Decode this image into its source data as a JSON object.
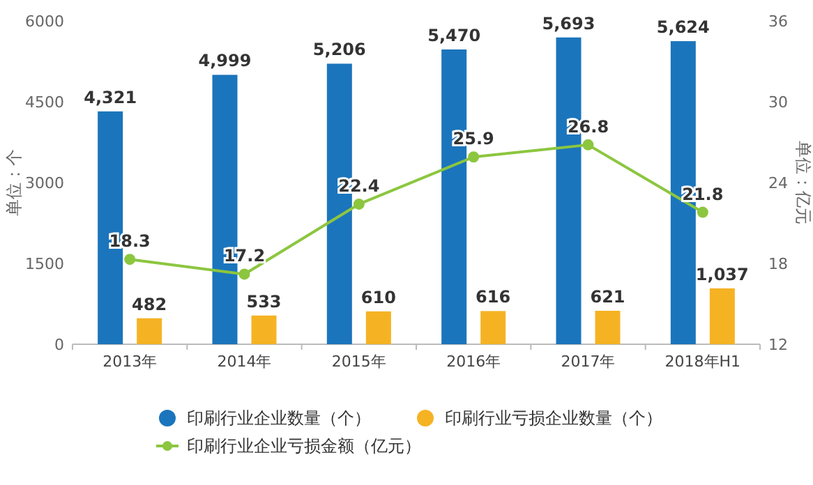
{
  "chart_data": {
    "type": "bar",
    "categories": [
      "2013年",
      "2014年",
      "2015年",
      "2016年",
      "2017年",
      "2018年H1"
    ],
    "series": [
      {
        "name": "印刷行业企业数量（个）",
        "color": "#1b75bc",
        "values": [
          4321,
          4999,
          5206,
          5470,
          5693,
          5624
        ],
        "value_labels": [
          "4,321",
          "4,999",
          "5,206",
          "5,470",
          "5,693",
          "5,624"
        ]
      },
      {
        "name": "印刷行业亏损企业数量（个）",
        "color": "#f5b324",
        "values": [
          482,
          533,
          610,
          616,
          621,
          1037
        ],
        "value_labels": [
          "482",
          "533",
          "610",
          "616",
          "621",
          "1,037"
        ]
      },
      {
        "name": "印刷行业企业亏损金额（亿元）",
        "color": "#8cc63f",
        "type": "line",
        "axis": "y2",
        "marker": "circle",
        "values": [
          18.3,
          17.2,
          22.4,
          25.9,
          26.8,
          21.8
        ],
        "value_labels": [
          "18.3",
          "17.2",
          "22.4",
          "25.9",
          "26.8",
          "21.8"
        ]
      }
    ],
    "ylabel": "单位：个",
    "y2label": "单位：亿元",
    "ylim": [
      0,
      6000
    ],
    "yticks": [
      0,
      1500,
      3000,
      4500,
      6000
    ],
    "y2lim": [
      12,
      36
    ],
    "y2ticks": [
      12,
      18,
      24,
      30,
      36
    ],
    "legend": "bottom"
  }
}
